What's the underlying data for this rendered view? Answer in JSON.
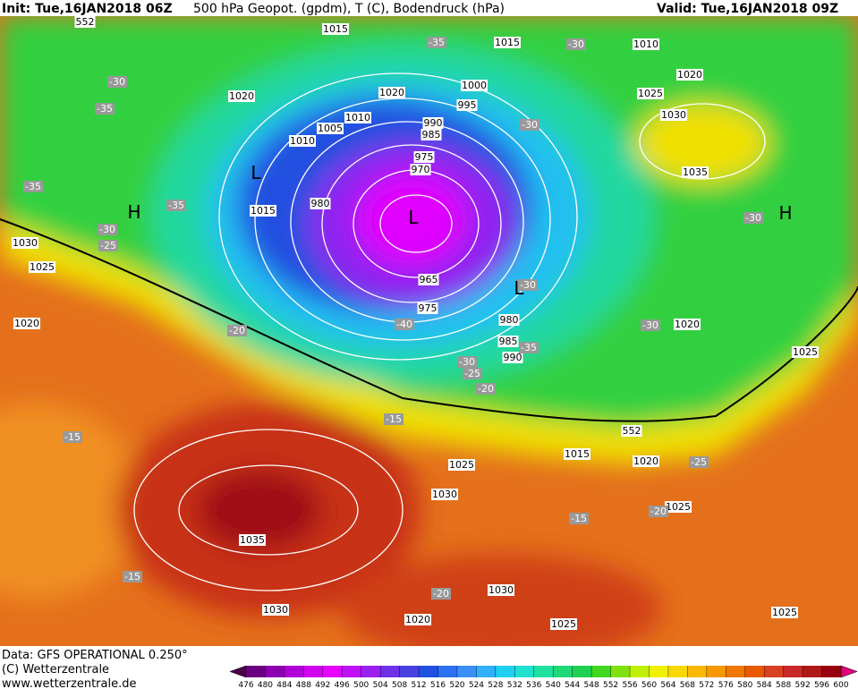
{
  "header": {
    "init": "Init: Tue,16JAN2018 06Z",
    "title": "500 hPa Geopot. (gpdm), T (C), Bodendruck (hPa)",
    "valid": "Valid: Tue,16JAN2018 09Z"
  },
  "footer": {
    "source": "Data: GFS OPERATIONAL 0.250°",
    "copyright": "(C) Wetterzentrale",
    "url": "www.wetterzentrale.de"
  },
  "map": {
    "pressure_labels": [
      "1015",
      "1015",
      "1010",
      "1020",
      "1020",
      "1020",
      "1000",
      "995",
      "1025",
      "1030",
      "1010",
      "1005",
      "1010",
      "990",
      "985",
      "975",
      "970",
      "980",
      "1015",
      "1035",
      "965",
      "975",
      "980",
      "985",
      "990",
      "1020",
      "1025",
      "1030",
      "1025",
      "1020",
      "1025",
      "1015",
      "1020",
      "1030",
      "1025",
      "1035",
      "1030",
      "1030",
      "1020",
      "1025",
      "1025",
      "552",
      "552"
    ],
    "temperature_labels": [
      "-35",
      "-30",
      "-30",
      "-35",
      "-30",
      "-35",
      "-35",
      "-30",
      "-25",
      "-30",
      "-30",
      "-20",
      "-40",
      "-30",
      "-35",
      "-30",
      "-25",
      "-20",
      "-15",
      "-15",
      "-25",
      "-20",
      "-15",
      "-15",
      "-20"
    ],
    "pressure_centers": [
      "H",
      "L",
      "H",
      "L",
      "L"
    ]
  },
  "colorbar": {
    "ticks": [
      476,
      480,
      484,
      488,
      492,
      496,
      500,
      504,
      508,
      512,
      516,
      520,
      524,
      528,
      532,
      536,
      540,
      544,
      548,
      552,
      556,
      560,
      564,
      568,
      572,
      576,
      580,
      584,
      588,
      592,
      596,
      600
    ],
    "colors": [
      "#4b0046",
      "#6a0080",
      "#8d00b0",
      "#b000d8",
      "#d400f0",
      "#e600ff",
      "#c010f8",
      "#9a20f0",
      "#7030e8",
      "#4840e0",
      "#2050e0",
      "#2a70f0",
      "#3a90f8",
      "#30b0f8",
      "#20d0f0",
      "#20e0d0",
      "#20e0a0",
      "#20d878",
      "#20d050",
      "#40d820",
      "#80e010",
      "#c0f000",
      "#f0f000",
      "#f8d800",
      "#f8b800",
      "#f89800",
      "#f07800",
      "#e85800",
      "#d84020",
      "#c82828",
      "#b01818",
      "#980010",
      "#e0007a"
    ]
  }
}
